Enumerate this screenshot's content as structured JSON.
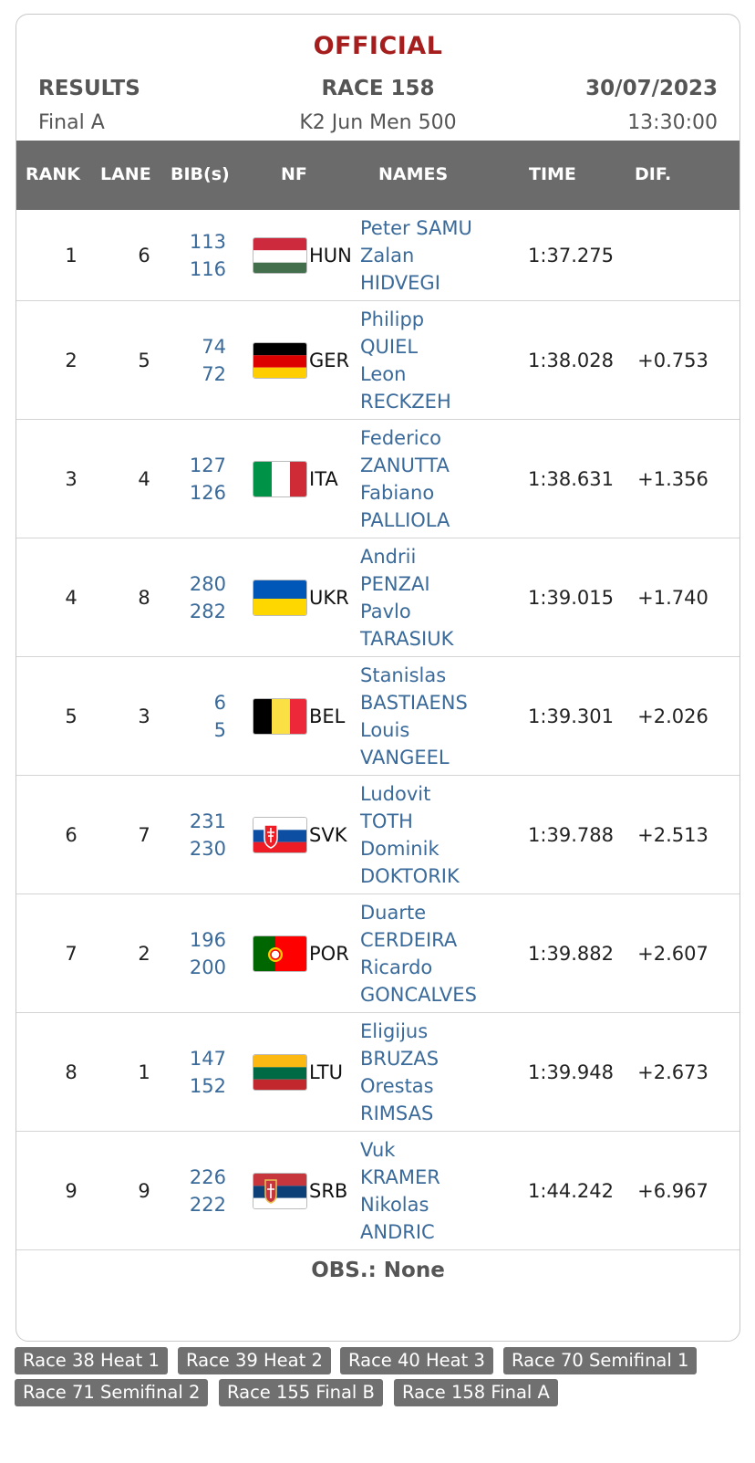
{
  "header": {
    "status": "OFFICIAL",
    "results_label": "RESULTS",
    "race_label": "RACE 158",
    "date": "30/07/2023",
    "phase": "Final A",
    "event": "K2 Jun Men 500",
    "time": "13:30:00"
  },
  "columns": [
    "RANK",
    "LANE",
    "BIB(s)",
    "NF",
    "NAMES",
    "TIME",
    "DIF."
  ],
  "rows": [
    {
      "rank": "1",
      "lane": "6",
      "bib1": "113",
      "bib2": "116",
      "nf": "HUN",
      "names": [
        "Peter SAMU",
        "Zalan",
        "HIDVEGI"
      ],
      "time": "1:37.275",
      "dif": "",
      "flag": "hun-flag-icon"
    },
    {
      "rank": "2",
      "lane": "5",
      "bib1": "74",
      "bib2": "72",
      "nf": "GER",
      "names": [
        "Philipp",
        "QUIEL",
        "Leon",
        "RECKZEH"
      ],
      "time": "1:38.028",
      "dif": "+0.753",
      "flag": "ger-flag-icon"
    },
    {
      "rank": "3",
      "lane": "4",
      "bib1": "127",
      "bib2": "126",
      "nf": "ITA",
      "names": [
        "Federico",
        "ZANUTTA",
        "Fabiano",
        "PALLIOLA"
      ],
      "time": "1:38.631",
      "dif": "+1.356",
      "flag": "ita-flag-icon"
    },
    {
      "rank": "4",
      "lane": "8",
      "bib1": "280",
      "bib2": "282",
      "nf": "UKR",
      "names": [
        "Andrii",
        "PENZAI",
        "Pavlo",
        "TARASIUK"
      ],
      "time": "1:39.015",
      "dif": "+1.740",
      "flag": "ukr-flag-icon"
    },
    {
      "rank": "5",
      "lane": "3",
      "bib1": "6",
      "bib2": "5",
      "nf": "BEL",
      "names": [
        "Stanislas",
        "BASTIAENS",
        "Louis",
        "VANGEEL"
      ],
      "time": "1:39.301",
      "dif": "+2.026",
      "flag": "bel-flag-icon"
    },
    {
      "rank": "6",
      "lane": "7",
      "bib1": "231",
      "bib2": "230",
      "nf": "SVK",
      "names": [
        "Ludovit",
        "TOTH",
        "Dominik",
        "DOKTORIK"
      ],
      "time": "1:39.788",
      "dif": "+2.513",
      "flag": "svk-flag-icon"
    },
    {
      "rank": "7",
      "lane": "2",
      "bib1": "196",
      "bib2": "200",
      "nf": "POR",
      "names": [
        "Duarte",
        "CERDEIRA",
        "Ricardo",
        "GONCALVES"
      ],
      "time": "1:39.882",
      "dif": "+2.607",
      "flag": "por-flag-icon"
    },
    {
      "rank": "8",
      "lane": "1",
      "bib1": "147",
      "bib2": "152",
      "nf": "LTU",
      "names": [
        "Eligijus",
        "BRUZAS",
        "Orestas",
        "RIMSAS"
      ],
      "time": "1:39.948",
      "dif": "+2.673",
      "flag": "ltu-flag-icon"
    },
    {
      "rank": "9",
      "lane": "9",
      "bib1": "226",
      "bib2": "222",
      "nf": "SRB",
      "names": [
        "Vuk",
        "KRAMER",
        "Nikolas",
        "ANDRIC"
      ],
      "time": "1:44.242",
      "dif": "+6.967",
      "flag": "srb-flag-icon"
    }
  ],
  "obs": "OBS.: None",
  "race_links": [
    "Race 38 Heat 1",
    "Race 39 Heat 2",
    "Race 40 Heat 3",
    "Race 70 Semifinal 1",
    "Race 71 Semifinal 2",
    "Race 155 Final B",
    "Race 158 Final A"
  ],
  "colors": {
    "official": "#a51d1d",
    "header_bg": "#6b6b6b",
    "link": "#3a6a9a",
    "race_btn": "#707070"
  }
}
